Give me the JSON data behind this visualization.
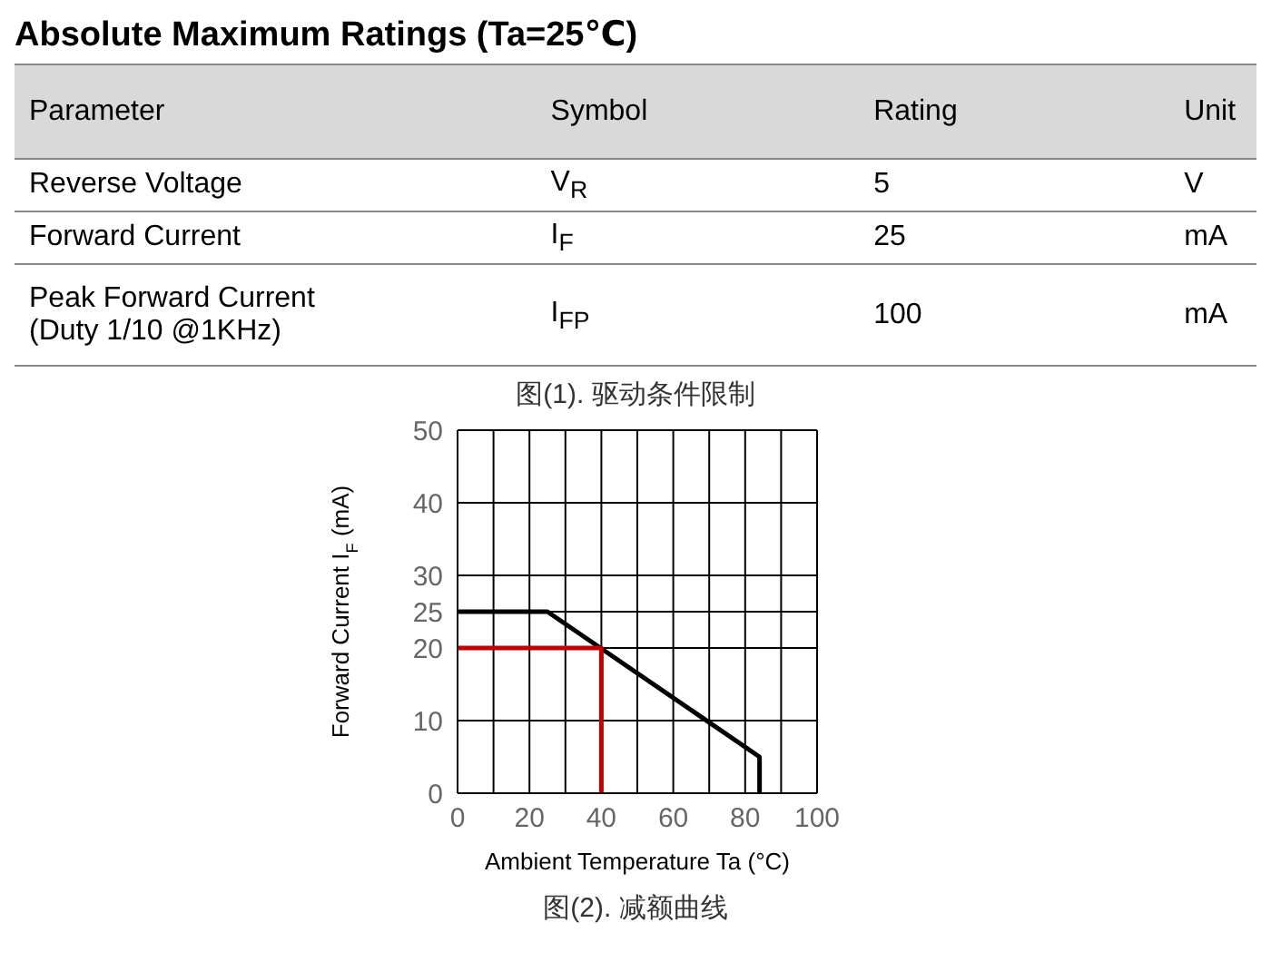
{
  "chart_data": [
    {
      "type": "other",
      "title": "Absolute Maximum Ratings (Ta=25℃)",
      "annotations": [
        "Parameter",
        "Symbol",
        "Rating",
        "Unit",
        "Reverse Voltage",
        "V$_{R}$",
        "5",
        "V",
        "Forward Current",
        "I$_{F}$",
        "25",
        "mA",
        "Peak Forward Current\n(Duty 1/10 @1KHz)",
        "I$_{FP}$",
        "100",
        "mA",
        "图(1). 驱动条件限制"
      ]
    },
    {
      "type": "line",
      "xlabel": "Ambient Temperature Ta (°C)",
      "ylabel": "Forward Current   I$_{F}$ (mA)",
      "xlim": [
        0,
        100
      ],
      "ylim": [
        0,
        50
      ],
      "xticks": [
        0,
        {
          "value": 10,
          "label": null
        },
        20,
        {
          "value": 30,
          "label": null
        },
        40,
        {
          "value": 50,
          "label": null
        },
        60,
        {
          "value": 70,
          "label": null
        },
        80,
        {
          "value": 90,
          "label": null
        },
        100
      ],
      "yticks": [
        0,
        10,
        20,
        25,
        30,
        40,
        50
      ],
      "grid": true,
      "series": [
        {
          "color": "#000000",
          "x": [
            0,
            25,
            84,
            84
          ],
          "values": [
            25,
            25,
            5,
            0
          ]
        },
        {
          "color": "#c00000",
          "x": [
            0,
            40,
            40
          ],
          "values": [
            20,
            20,
            0
          ]
        }
      ],
      "annotations": [
        "图(2). 减额曲线"
      ]
    }
  ]
}
